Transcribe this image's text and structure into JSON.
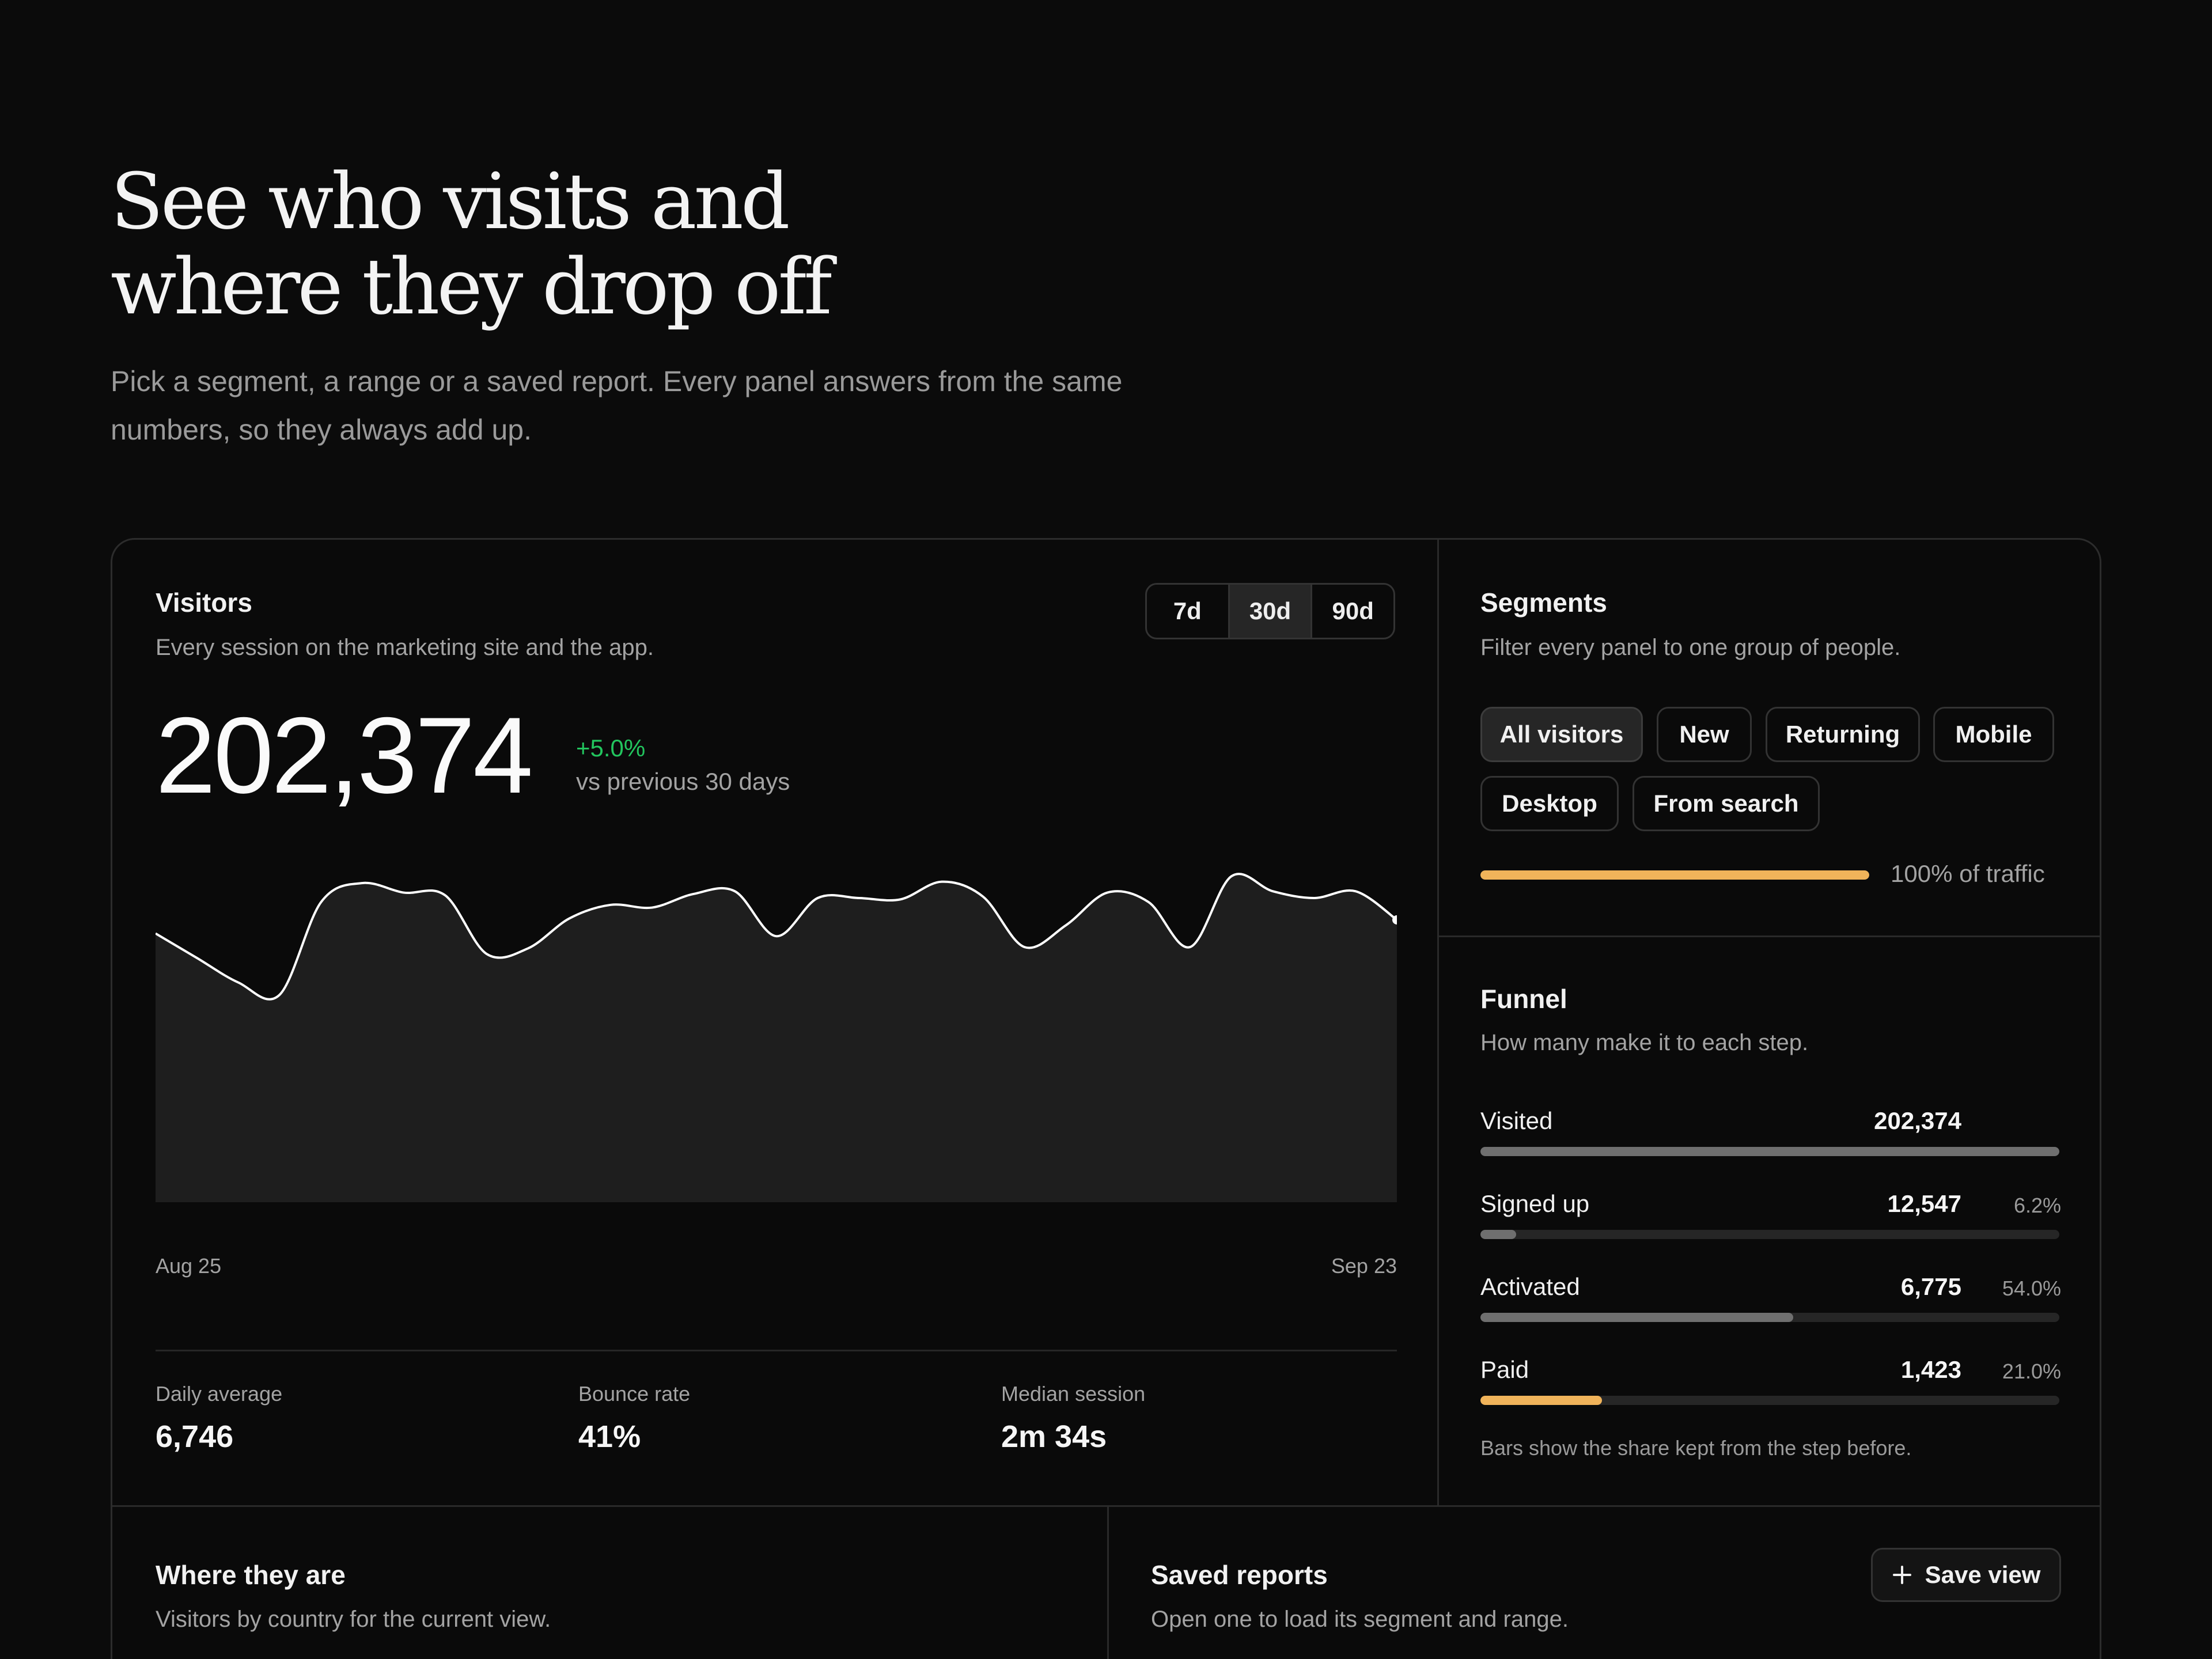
{
  "hero": {
    "title_line1": "See who visits and",
    "title_line2": "where they drop off",
    "subtitle_line1": "Pick a segment, a range or a saved report. Every panel answers from the same",
    "subtitle_line2": "numbers, so they always add up."
  },
  "visitors": {
    "title": "Visitors",
    "subtitle": "Every session on the marketing site and the app.",
    "ranges": [
      "7d",
      "30d",
      "90d"
    ],
    "active_range": "30d",
    "total": "202,374",
    "delta": "+5.0%",
    "delta_label": "vs previous 30 days",
    "colors": {
      "delta_positive": "#22c55e",
      "line": "#ffffff",
      "area": "#1e1e1e"
    }
  },
  "chart_data": {
    "type": "area",
    "title": "",
    "xlabel": "",
    "ylabel": "",
    "x_start": "Aug 25",
    "x_end": "Sep 23",
    "x_tick_labels": [
      "Aug 25",
      "Sep 23"
    ],
    "values": [
      6620,
      6440,
      6260,
      6170,
      6850,
      6990,
      6920,
      6900,
      6470,
      6510,
      6730,
      6830,
      6810,
      6910,
      6930,
      6600,
      6880,
      6880,
      6870,
      7000,
      6890,
      6520,
      6680,
      6920,
      6850,
      6520,
      7040,
      6930,
      6880,
      6930,
      6720
    ],
    "grid": false,
    "legend": "none"
  },
  "stats": [
    {
      "label": "Daily average",
      "value": "6,746"
    },
    {
      "label": "Bounce rate",
      "value": "41%"
    },
    {
      "label": "Median session",
      "value": "2m 34s"
    }
  ],
  "segments": {
    "title": "Segments",
    "subtitle": "Filter every panel to one group of people.",
    "chips": [
      "All visitors",
      "New",
      "Returning",
      "Mobile",
      "Desktop",
      "From search"
    ],
    "active_chip": "All visitors",
    "traffic_share": 1.0,
    "traffic_label": "100% of traffic",
    "colors": {
      "accent": "#f0b35a"
    }
  },
  "funnel": {
    "title": "Funnel",
    "subtitle": "How many make it to each step.",
    "steps": [
      {
        "name": "Visited",
        "count": "202,374",
        "pct": "",
        "share": 1.0
      },
      {
        "name": "Signed up",
        "count": "12,547",
        "pct": "6.2%",
        "share": 0.062
      },
      {
        "name": "Activated",
        "count": "6,775",
        "pct": "54.0%",
        "share": 0.54
      },
      {
        "name": "Paid",
        "count": "1,423",
        "pct": "21.0%",
        "share": 0.21
      }
    ],
    "note": "Bars show the share kept from the step before.",
    "colors": {
      "bar": "#6f6f6f",
      "paid_bar": "#f0b35a"
    }
  },
  "where": {
    "title": "Where they are",
    "subtitle": "Visitors by country for the current view."
  },
  "saved": {
    "title": "Saved reports",
    "subtitle": "Open one to load its segment and range.",
    "save_label": "Save view",
    "save_icon": "plus-icon"
  }
}
